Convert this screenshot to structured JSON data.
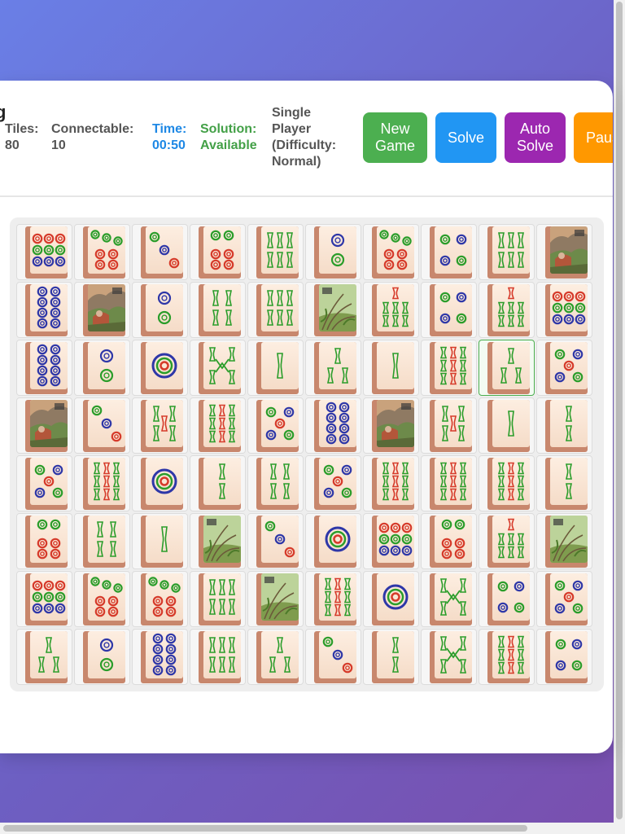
{
  "header": {
    "title_fragment": "g",
    "tiles_label": "Tiles:",
    "tiles_value": "80",
    "connectable_label": "Connectable:",
    "connectable_value": "10",
    "time_label": "Time:",
    "time_value": "00:50",
    "solution_label": "Solution:",
    "solution_value": "Available",
    "mode_text": "Single Player (Difficulty: Normal)"
  },
  "buttons": {
    "new_game": "New Game",
    "solve": "Solve",
    "auto_solve": "Auto Solve",
    "pause": "Pause"
  },
  "colors": {
    "new_game": "#4caf50",
    "solve": "#2196f3",
    "auto_solve": "#9c27b0",
    "pause": "#ff9800",
    "time": "#1e88e5",
    "solution": "#43a047"
  },
  "board": {
    "selected": {
      "row": 3,
      "col": 9
    },
    "rows": [
      [
        "dots-9",
        "dots-7",
        "dots-3",
        "dots-6",
        "bamboo-6",
        "dots-2",
        "dots-7",
        "dots-4",
        "bamboo-6",
        "season-picture"
      ],
      [
        "dots-8",
        "season-picture",
        "dots-2",
        "bamboo-4",
        "bamboo-6",
        "flower-picture",
        "bamboo-7",
        "dots-4",
        "bamboo-7",
        "dots-9"
      ],
      [
        "dots-8",
        "dots-2",
        "dots-1",
        "bamboo-8",
        "bamboo-1",
        "bamboo-3",
        "bamboo-1",
        "bamboo-9",
        "bamboo-3",
        "dots-5"
      ],
      [
        "season-picture",
        "dots-3",
        "bamboo-5",
        "bamboo-9",
        "dots-5",
        "dots-8",
        "season-picture",
        "bamboo-5",
        "bamboo-1",
        "bamboo-2"
      ],
      [
        "dots-5",
        "bamboo-9",
        "dots-1",
        "bamboo-2",
        "bamboo-4",
        "dots-5",
        "bamboo-9",
        "bamboo-9",
        "bamboo-9",
        "bamboo-2"
      ],
      [
        "dots-6",
        "bamboo-4",
        "bamboo-1",
        "flower-picture",
        "dots-3",
        "dots-1",
        "dots-9",
        "dots-6",
        "bamboo-7",
        "flower-picture"
      ],
      [
        "dots-9",
        "dots-7",
        "dots-7",
        "bamboo-6",
        "flower-picture",
        "bamboo-9",
        "dots-1",
        "bamboo-8",
        "dots-4",
        "dots-5"
      ],
      [
        "bamboo-3",
        "dots-2",
        "dots-8",
        "bamboo-6",
        "bamboo-3",
        "dots-3",
        "bamboo-2",
        "bamboo-8",
        "bamboo-9",
        "dots-4"
      ]
    ]
  }
}
